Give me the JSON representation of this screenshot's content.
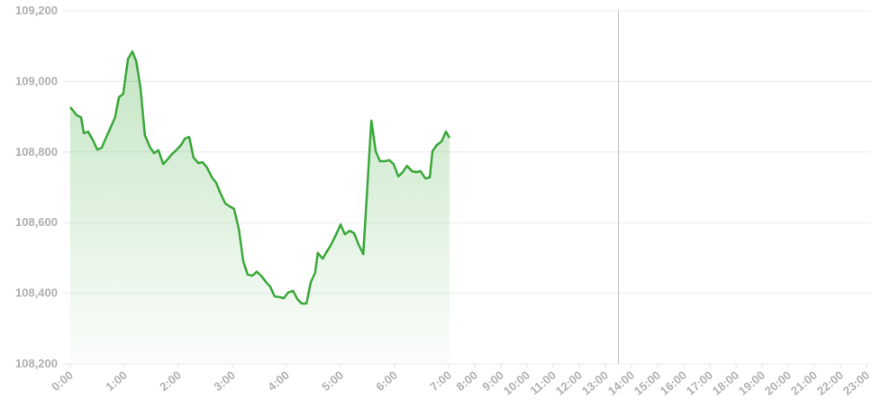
{
  "chart_data": {
    "type": "area",
    "x": [
      0.0,
      0.12,
      0.2,
      0.25,
      0.33,
      0.43,
      0.5,
      0.58,
      0.67,
      0.75,
      0.83,
      0.9,
      0.98,
      1.07,
      1.15,
      1.22,
      1.3,
      1.38,
      1.47,
      1.55,
      1.63,
      1.72,
      1.8,
      1.88,
      1.97,
      2.05,
      2.12,
      2.2,
      2.28,
      2.37,
      2.45,
      2.53,
      2.62,
      2.7,
      2.78,
      2.87,
      2.95,
      3.03,
      3.12,
      3.2,
      3.28,
      3.37,
      3.45,
      3.53,
      3.62,
      3.7,
      3.78,
      3.87,
      3.95,
      4.03,
      4.12,
      4.2,
      4.28,
      4.37,
      4.45,
      4.53,
      4.58,
      4.67,
      4.75,
      4.83,
      4.92,
      5.0,
      5.08,
      5.17,
      5.25,
      5.33,
      5.42,
      5.57,
      5.65,
      5.73,
      5.82,
      5.9,
      5.98,
      6.07,
      6.15,
      6.23,
      6.32,
      6.4,
      6.48,
      6.57,
      6.65,
      6.7,
      6.78,
      6.87,
      6.95,
      7.03
    ],
    "series": [
      {
        "color": "#3aa83a",
        "values": [
          108927,
          108904,
          108898,
          108853,
          108858,
          108830,
          108807,
          108812,
          108843,
          108871,
          108899,
          108955,
          108965,
          109065,
          109085,
          109057,
          108981,
          108848,
          108815,
          108797,
          108805,
          108766,
          108779,
          108794,
          108807,
          108820,
          108838,
          108843,
          108784,
          108769,
          108771,
          108756,
          108728,
          108713,
          108682,
          108654,
          108646,
          108639,
          108580,
          108491,
          108453,
          108450,
          108461,
          108450,
          108432,
          108419,
          108391,
          108389,
          108386,
          108402,
          108407,
          108384,
          108371,
          108371,
          108432,
          108458,
          108514,
          108498,
          108519,
          108539,
          108567,
          108595,
          108567,
          108577,
          108570,
          108539,
          108511,
          108889,
          108802,
          108774,
          108774,
          108777,
          108766,
          108731,
          108743,
          108761,
          108746,
          108743,
          108746,
          108725,
          108728,
          108802,
          108820,
          108830,
          108858,
          108840
        ]
      }
    ],
    "ylim": [
      108200,
      109200
    ],
    "yticks": [
      {
        "value": 108200,
        "label": "108,200"
      },
      {
        "value": 108400,
        "label": "108,400"
      },
      {
        "value": 108600,
        "label": "108,600"
      },
      {
        "value": 108800,
        "label": "108,800"
      },
      {
        "value": 109000,
        "label": "109,000"
      },
      {
        "value": 109200,
        "label": "109,200"
      }
    ],
    "xlim": [
      0,
      23
    ],
    "xticks": [
      {
        "value": 0,
        "label": "0:00"
      },
      {
        "value": 1,
        "label": "1:00"
      },
      {
        "value": 2,
        "label": "2:00"
      },
      {
        "value": 3,
        "label": "3:00"
      },
      {
        "value": 4,
        "label": "4:00"
      },
      {
        "value": 5,
        "label": "5:00"
      },
      {
        "value": 6,
        "label": "6:00"
      },
      {
        "value": 7,
        "label": "7:00"
      },
      {
        "value": 8,
        "label": "8:00"
      },
      {
        "value": 9,
        "label": "9:00"
      },
      {
        "value": 10,
        "label": "10:00"
      },
      {
        "value": 11,
        "label": "11:00"
      },
      {
        "value": 12,
        "label": "12:00"
      },
      {
        "value": 13,
        "label": "13:00"
      },
      {
        "value": 14,
        "label": "14:00"
      },
      {
        "value": 15,
        "label": "15:00"
      },
      {
        "value": 16,
        "label": "16:00"
      },
      {
        "value": 17,
        "label": "17:00"
      },
      {
        "value": 18,
        "label": "18:00"
      },
      {
        "value": 19,
        "label": "19:00"
      },
      {
        "value": 20,
        "label": "20:00"
      },
      {
        "value": 21,
        "label": "21:00"
      },
      {
        "value": 22,
        "label": "22:00"
      },
      {
        "value": 23,
        "label": "23:00"
      }
    ],
    "vline_x": 13.5,
    "grid": true
  }
}
